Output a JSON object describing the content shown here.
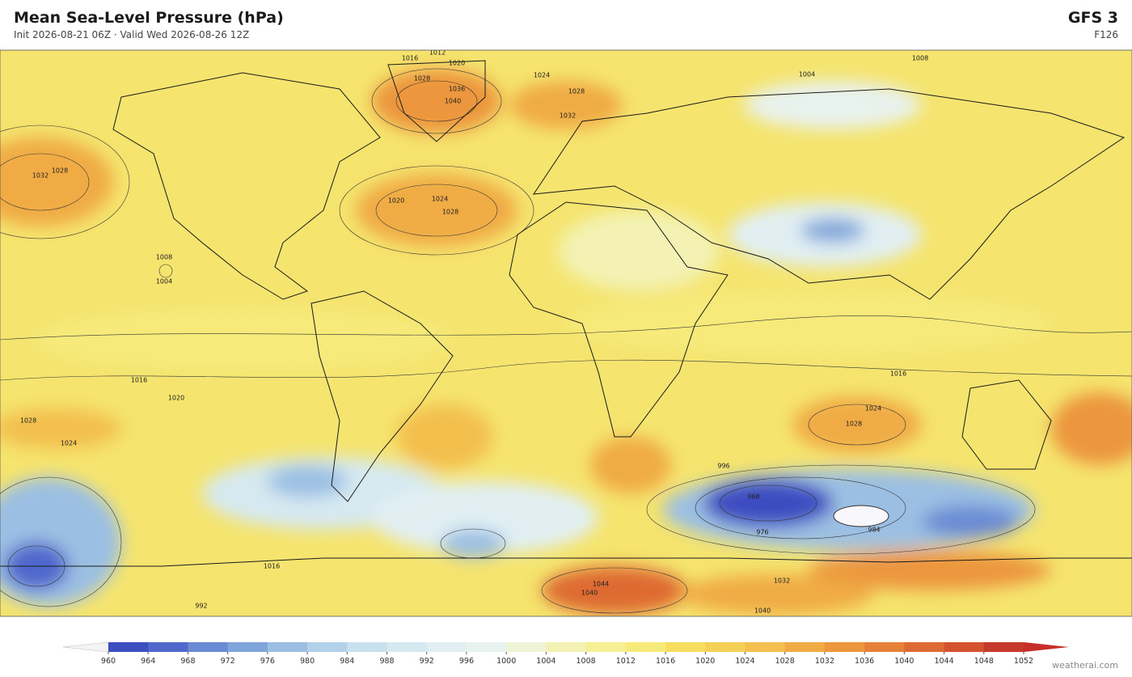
{
  "header": {
    "title": "Mean Sea-Level Pressure  (hPa)",
    "subtitle": "Init 2026-08-21 06Z  ·  Valid Wed 2026-08-26 12Z",
    "model": "GFS  3",
    "forecast_hour": "F126"
  },
  "colorbar": {
    "ticks": [
      960,
      964,
      968,
      972,
      976,
      980,
      984,
      988,
      992,
      996,
      1000,
      1004,
      1008,
      1012,
      1016,
      1020,
      1024,
      1028,
      1032,
      1036,
      1040,
      1044,
      1048,
      1052
    ],
    "colors": [
      "#3d4ec1",
      "#5068cc",
      "#6a8bd4",
      "#7fa6da",
      "#9bbfe3",
      "#b3d2ea",
      "#c8e1ef",
      "#d6e9f1",
      "#e1eff3",
      "#e8f2ee",
      "#eef5d6",
      "#f3f2b4",
      "#f5ef95",
      "#f6ea7a",
      "#f6dd60",
      "#f5d056",
      "#f3bf4e",
      "#f0ab45",
      "#ec963e",
      "#e68138",
      "#de6a33",
      "#d4522e",
      "#c53a2a"
    ],
    "under_color": "#f4f4f4",
    "over_color": "#c62f28"
  },
  "contour_labels": [
    "1012",
    "1016",
    "1020",
    "1008",
    "1028",
    "1036",
    "1040",
    "1024",
    "1028",
    "1032",
    "1004",
    "1032",
    "1028",
    "1024",
    "1028",
    "1020",
    "1008",
    "1004",
    "1016",
    "1020",
    "1028",
    "1024",
    "1028",
    "1024",
    "1016",
    "996",
    "968",
    "976",
    "984",
    "1044",
    "1040",
    "1032",
    "1040",
    "992",
    "1016"
  ],
  "footer": {
    "credit": "weatherai.com"
  }
}
